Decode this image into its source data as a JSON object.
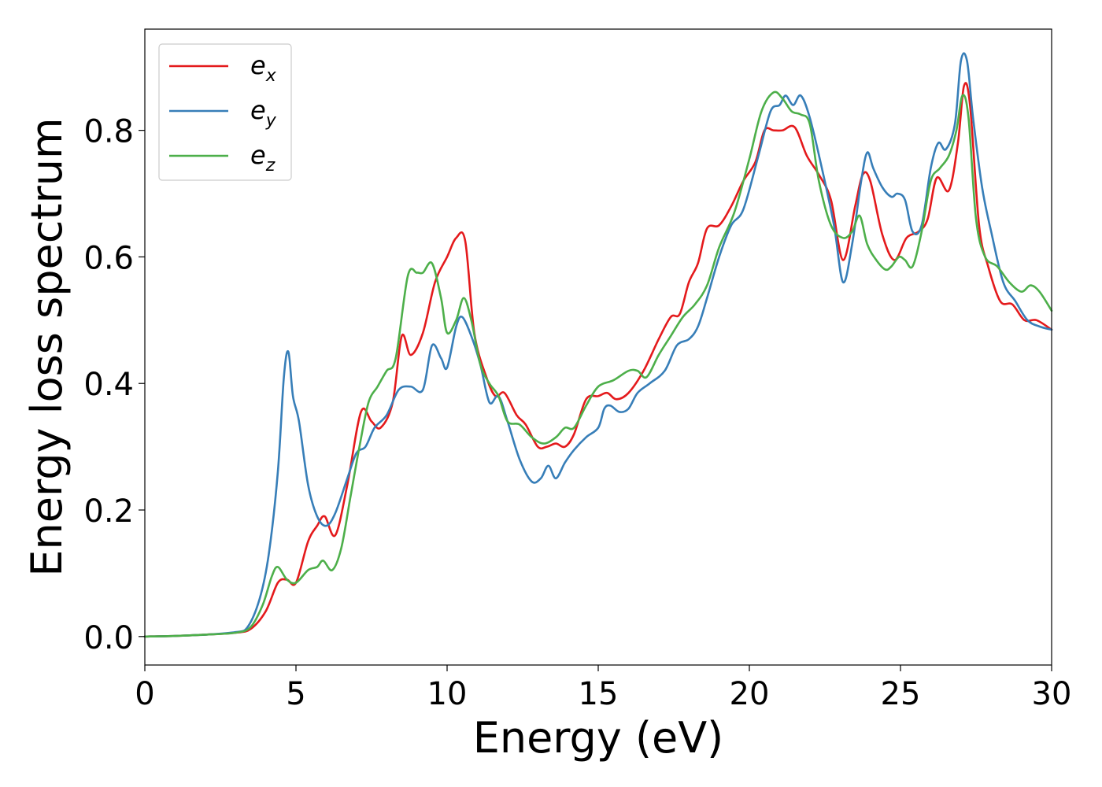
{
  "chart_data": {
    "type": "line",
    "title": "",
    "xlabel": "Energy (eV)",
    "ylabel": "Energy loss spectrum",
    "xlim": [
      0,
      30
    ],
    "ylim": [
      -0.045,
      0.96
    ],
    "xticks": [
      "0",
      "5",
      "10",
      "15",
      "20",
      "25",
      "30"
    ],
    "yticks": [
      "0.0",
      "0.2",
      "0.4",
      "0.6",
      "0.8"
    ],
    "grid": false,
    "legend_position": "top-left",
    "series": [
      {
        "name": "e",
        "subscript": "x",
        "color": "#e41a1c",
        "x": [
          0,
          1,
          2,
          3,
          3.5,
          4,
          4.4,
          4.7,
          5,
          5.4,
          5.7,
          5.95,
          6.3,
          6.7,
          7.15,
          7.5,
          7.8,
          8.2,
          8.5,
          8.8,
          9.2,
          9.6,
          10.0,
          10.3,
          10.6,
          10.9,
          11.3,
          11.6,
          11.9,
          12.3,
          12.6,
          13.0,
          13.3,
          13.6,
          13.9,
          14.2,
          14.6,
          15.0,
          15.3,
          15.6,
          16.0,
          16.5,
          17.0,
          17.4,
          17.7,
          18.0,
          18.3,
          18.6,
          19.0,
          19.4,
          19.8,
          20.2,
          20.5,
          20.8,
          21.1,
          21.5,
          21.9,
          22.3,
          22.7,
          23.1,
          23.5,
          23.75,
          24.0,
          24.4,
          24.8,
          25.2,
          25.6,
          25.9,
          26.2,
          26.6,
          26.9,
          27.1,
          27.3,
          27.6,
          27.9,
          28.3,
          28.7,
          29.1,
          29.5,
          30.0
        ],
        "y": [
          0.0,
          0.001,
          0.003,
          0.006,
          0.012,
          0.04,
          0.085,
          0.09,
          0.085,
          0.15,
          0.175,
          0.19,
          0.16,
          0.24,
          0.355,
          0.34,
          0.33,
          0.37,
          0.475,
          0.445,
          0.48,
          0.56,
          0.6,
          0.63,
          0.625,
          0.48,
          0.41,
          0.38,
          0.385,
          0.35,
          0.335,
          0.3,
          0.3,
          0.305,
          0.3,
          0.32,
          0.375,
          0.38,
          0.385,
          0.375,
          0.385,
          0.42,
          0.47,
          0.505,
          0.51,
          0.56,
          0.59,
          0.645,
          0.65,
          0.68,
          0.72,
          0.75,
          0.8,
          0.8,
          0.8,
          0.805,
          0.76,
          0.73,
          0.69,
          0.595,
          0.68,
          0.73,
          0.72,
          0.635,
          0.595,
          0.63,
          0.64,
          0.66,
          0.725,
          0.705,
          0.78,
          0.87,
          0.84,
          0.65,
          0.585,
          0.53,
          0.525,
          0.5,
          0.5,
          0.485
        ]
      },
      {
        "name": "e",
        "subscript": "y",
        "color": "#377eb8",
        "x": [
          0,
          1,
          2,
          3,
          3.4,
          3.8,
          4.1,
          4.4,
          4.6,
          4.75,
          4.9,
          5.1,
          5.4,
          5.7,
          6.0,
          6.3,
          6.7,
          7.0,
          7.3,
          7.6,
          8.0,
          8.4,
          8.8,
          9.2,
          9.5,
          9.8,
          10.0,
          10.3,
          10.5,
          10.8,
          11.1,
          11.4,
          11.7,
          12.0,
          12.4,
          12.8,
          13.1,
          13.35,
          13.6,
          13.9,
          14.2,
          14.6,
          15.0,
          15.2,
          15.4,
          15.7,
          16.0,
          16.3,
          16.7,
          17.2,
          17.6,
          18.0,
          18.3,
          18.6,
          19.0,
          19.4,
          19.8,
          20.3,
          20.7,
          21.0,
          21.2,
          21.45,
          21.7,
          22.0,
          22.4,
          22.8,
          23.1,
          23.4,
          23.7,
          23.9,
          24.1,
          24.4,
          24.7,
          24.9,
          25.15,
          25.4,
          25.7,
          26.0,
          26.25,
          26.5,
          26.8,
          27.0,
          27.2,
          27.4,
          27.7,
          28.0,
          28.4,
          28.8,
          29.2,
          29.6,
          30.0
        ],
        "y": [
          0.0,
          0.001,
          0.003,
          0.007,
          0.015,
          0.06,
          0.13,
          0.26,
          0.41,
          0.45,
          0.38,
          0.34,
          0.24,
          0.19,
          0.175,
          0.195,
          0.25,
          0.29,
          0.3,
          0.33,
          0.35,
          0.39,
          0.395,
          0.39,
          0.46,
          0.44,
          0.425,
          0.49,
          0.505,
          0.475,
          0.43,
          0.37,
          0.38,
          0.34,
          0.28,
          0.245,
          0.25,
          0.27,
          0.25,
          0.275,
          0.295,
          0.315,
          0.33,
          0.36,
          0.365,
          0.355,
          0.36,
          0.385,
          0.4,
          0.42,
          0.46,
          0.47,
          0.49,
          0.535,
          0.6,
          0.65,
          0.675,
          0.76,
          0.83,
          0.84,
          0.855,
          0.84,
          0.855,
          0.82,
          0.74,
          0.65,
          0.56,
          0.62,
          0.72,
          0.765,
          0.74,
          0.71,
          0.695,
          0.7,
          0.69,
          0.64,
          0.65,
          0.74,
          0.78,
          0.77,
          0.81,
          0.91,
          0.91,
          0.82,
          0.71,
          0.64,
          0.56,
          0.53,
          0.5,
          0.49,
          0.485
        ]
      },
      {
        "name": "e",
        "subscript": "z",
        "color": "#4daf4a",
        "x": [
          0,
          1,
          2,
          3,
          3.5,
          3.9,
          4.2,
          4.4,
          4.7,
          5.0,
          5.4,
          5.7,
          5.9,
          6.2,
          6.5,
          6.8,
          7.1,
          7.4,
          7.7,
          8.0,
          8.3,
          8.7,
          9.0,
          9.2,
          9.5,
          9.8,
          10.0,
          10.3,
          10.55,
          10.8,
          11.1,
          11.4,
          11.7,
          12.0,
          12.4,
          12.8,
          13.2,
          13.6,
          13.9,
          14.2,
          14.6,
          15.0,
          15.5,
          16.0,
          16.3,
          16.6,
          17.0,
          17.4,
          17.8,
          18.2,
          18.6,
          19.0,
          19.5,
          20.0,
          20.4,
          20.8,
          21.1,
          21.4,
          21.7,
          22.0,
          22.3,
          22.7,
          23.1,
          23.4,
          23.65,
          23.9,
          24.2,
          24.5,
          24.7,
          24.95,
          25.15,
          25.4,
          25.7,
          26.0,
          26.3,
          26.6,
          26.85,
          27.05,
          27.25,
          27.5,
          27.8,
          28.2,
          28.6,
          29.0,
          29.3,
          29.6,
          30.0
        ],
        "y": [
          0.0,
          0.001,
          0.003,
          0.006,
          0.015,
          0.05,
          0.095,
          0.11,
          0.09,
          0.085,
          0.105,
          0.11,
          0.12,
          0.105,
          0.14,
          0.22,
          0.3,
          0.37,
          0.395,
          0.42,
          0.44,
          0.57,
          0.575,
          0.575,
          0.59,
          0.535,
          0.48,
          0.5,
          0.535,
          0.5,
          0.43,
          0.4,
          0.38,
          0.34,
          0.335,
          0.315,
          0.305,
          0.315,
          0.33,
          0.33,
          0.365,
          0.395,
          0.405,
          0.42,
          0.42,
          0.41,
          0.445,
          0.475,
          0.505,
          0.525,
          0.555,
          0.615,
          0.67,
          0.755,
          0.83,
          0.86,
          0.85,
          0.83,
          0.825,
          0.81,
          0.72,
          0.65,
          0.63,
          0.64,
          0.665,
          0.62,
          0.595,
          0.58,
          0.585,
          0.6,
          0.595,
          0.585,
          0.64,
          0.72,
          0.74,
          0.76,
          0.8,
          0.855,
          0.82,
          0.66,
          0.6,
          0.585,
          0.56,
          0.545,
          0.555,
          0.545,
          0.515
        ]
      }
    ]
  }
}
